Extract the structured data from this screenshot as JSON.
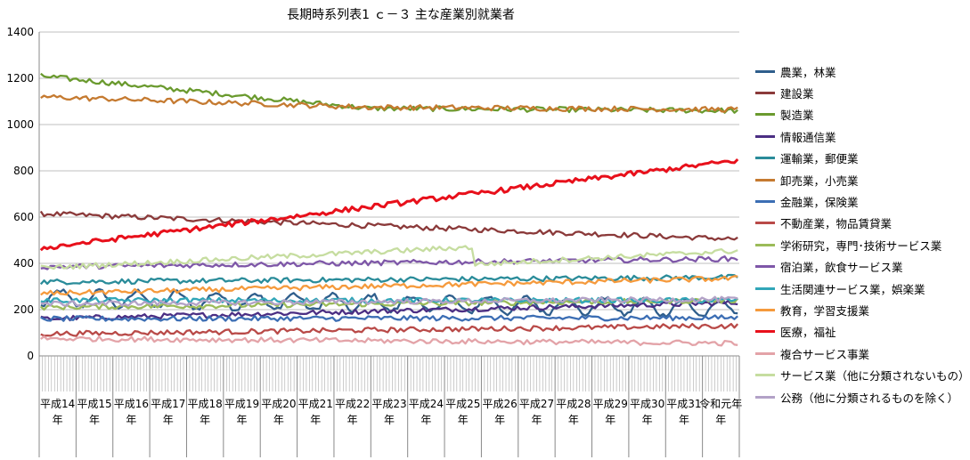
{
  "chart_data": {
    "type": "line",
    "title": "長期時系列表1 ｃ－３ 主な産業別就業者",
    "xlabel": "",
    "ylabel": "",
    "ylim": [
      0,
      1400
    ],
    "yticks": [
      0,
      200,
      400,
      600,
      800,
      1000,
      1200,
      1400
    ],
    "grid": "horizontal",
    "legend_position": "right",
    "x_start": "平成14年1月",
    "x_end": "令和元年12月",
    "year_labels": [
      "平成14年",
      "平成15年",
      "平成16年",
      "平成17年",
      "平成18年",
      "平成19年",
      "平成20年",
      "平成21年",
      "平成22年",
      "平成23年",
      "平成24年",
      "平成25年",
      "平成26年",
      "平成27年",
      "平成28年",
      "平成29年",
      "平成30年",
      "平成31年",
      "令和元年"
    ],
    "series": [
      {
        "name": "農業，林業",
        "color": "#2F5E8C",
        "values_start": 250,
        "values_end": 205,
        "pattern": "seasonal-strong"
      },
      {
        "name": "建設業",
        "color": "#8B3A3A",
        "values_start": 615,
        "values_end": 505,
        "pattern": "declining"
      },
      {
        "name": "製造業",
        "color": "#6A9A2E",
        "values_start": 1210,
        "values_end": 1060,
        "pattern": "declining-then-flat"
      },
      {
        "name": "情報通信業",
        "color": "#4B2E83",
        "values_start": 160,
        "values_end": 230,
        "pattern": "rising"
      },
      {
        "name": "運輸業，郵便業",
        "color": "#2A8C9A",
        "values_start": 320,
        "values_end": 340,
        "pattern": "flat"
      },
      {
        "name": "卸売業，小売業",
        "color": "#C57A30",
        "values_start": 1120,
        "values_end": 1065,
        "pattern": "declining-then-flat"
      },
      {
        "name": "金融業，保険業",
        "color": "#3C6EB4",
        "values_start": 160,
        "values_end": 165,
        "pattern": "flat"
      },
      {
        "name": "不動産業，物品賃貸業",
        "color": "#B94A48",
        "values_start": 95,
        "values_end": 130,
        "pattern": "rising"
      },
      {
        "name": "学術研究，専門･技術サービス業",
        "color": "#9BBB59",
        "values_start": 210,
        "values_end": 240,
        "pattern": "flat"
      },
      {
        "name": "宿泊業，飲食サービス業",
        "color": "#7E57A8",
        "values_start": 385,
        "values_end": 420,
        "pattern": "flat"
      },
      {
        "name": "生活関連サービス業，娯楽業",
        "color": "#31A6B8",
        "values_start": 240,
        "values_end": 240,
        "pattern": "flat"
      },
      {
        "name": "教育，学習支援業",
        "color": "#F59A3C",
        "values_start": 270,
        "values_end": 335,
        "pattern": "rising"
      },
      {
        "name": "医療，福祉",
        "color": "#E8101B",
        "values_start": 465,
        "values_end": 845,
        "pattern": "rising"
      },
      {
        "name": "複合サービス事業",
        "color": "#E3A3A8",
        "values_start": 75,
        "values_end": 55,
        "pattern": "declining"
      },
      {
        "name": "サービス業（他に分類されないもの）",
        "color": "#C6DDA0",
        "values_start": 380,
        "values_end": 455,
        "pattern": "step"
      },
      {
        "name": "公務（他に分類されるものを除く）",
        "color": "#B3A2C7",
        "values_start": 225,
        "values_end": 245,
        "pattern": "flat"
      }
    ]
  }
}
